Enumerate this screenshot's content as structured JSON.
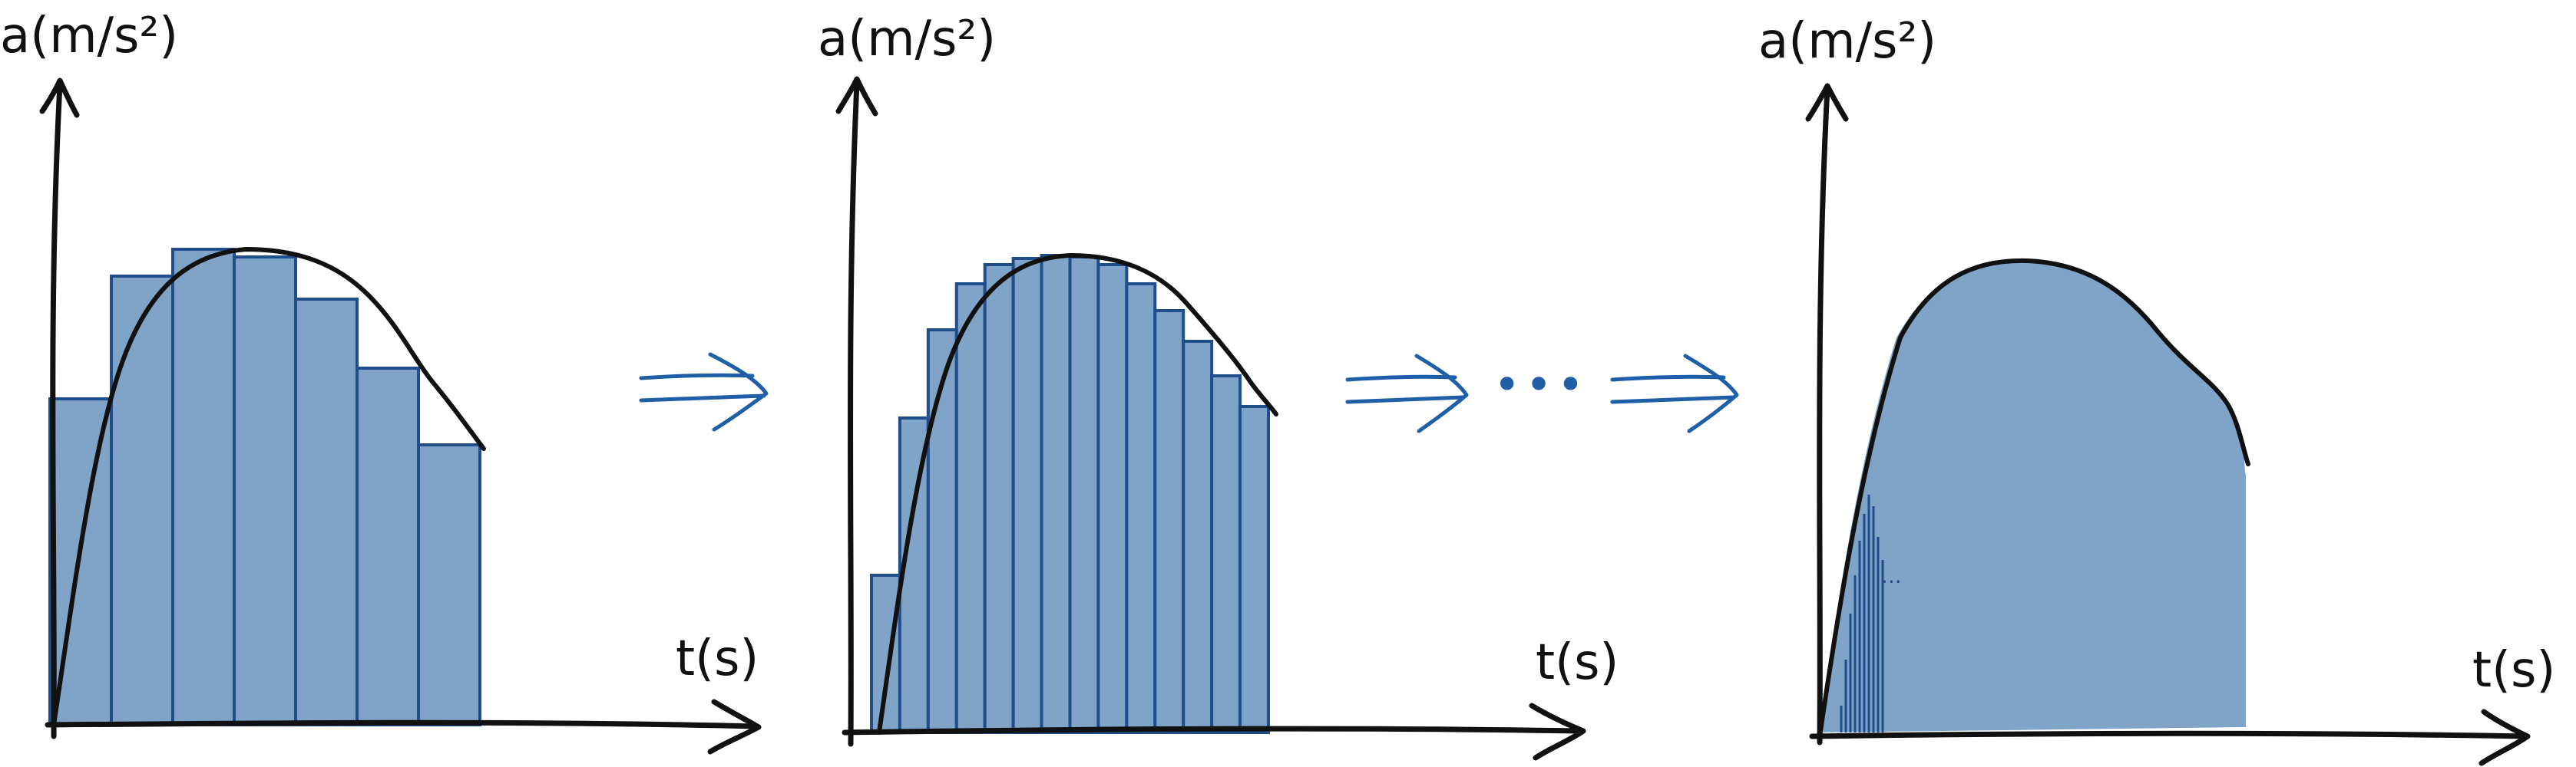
{
  "colors": {
    "fill": "#7fa4c8",
    "bar_edge": "#1f4e8a",
    "ink": "#111111",
    "arrow": "#1f5fa8"
  },
  "panels": [
    {
      "y_label": "a(m/s²)",
      "x_label": "t(s)",
      "bar_count": 7
    },
    {
      "y_label": "a(m/s²)",
      "x_label": "t(s)",
      "bar_count": 14
    },
    {
      "y_label": "a(m/s²)",
      "x_label": "t(s)",
      "bar_count": null,
      "inner_ellipsis": "..."
    }
  ],
  "connectors": [
    {
      "icon": "right-arrow-icon"
    },
    {
      "icon": "right-arrow-icon",
      "ellipsis": "•••"
    }
  ]
}
